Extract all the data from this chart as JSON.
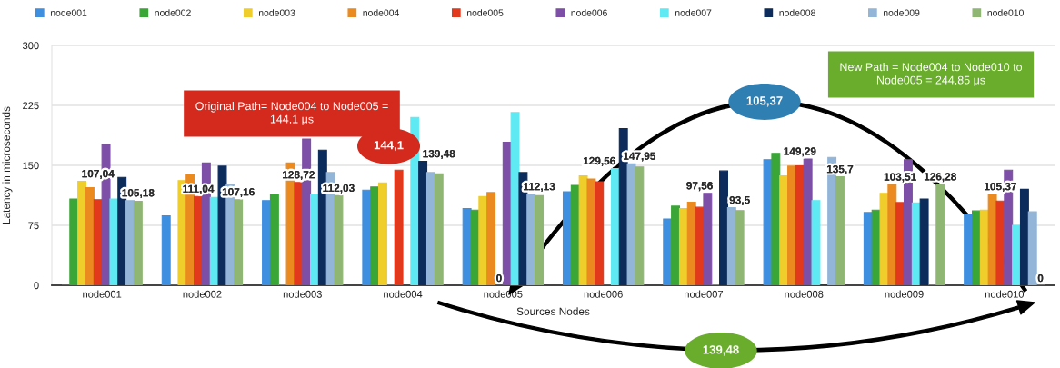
{
  "chart_data": {
    "type": "bar",
    "xlabel": "Sources Nodes",
    "ylabel": "Latency in microseconds",
    "categories": [
      "node001",
      "node002",
      "node003",
      "node004",
      "node005",
      "node006",
      "node007",
      "node008",
      "node009",
      "node010"
    ],
    "series": [
      {
        "name": "node001",
        "color": "#3f8fe0",
        "values": [
          0,
          87,
          106,
          119,
          96,
          117,
          83,
          157,
          91,
          88
        ]
      },
      {
        "name": "node002",
        "color": "#3aa637",
        "values": [
          108,
          0,
          114,
          123,
          94,
          125,
          99,
          165,
          94,
          93
        ]
      },
      {
        "name": "node003",
        "color": "#efcd2b",
        "values": [
          130,
          131,
          0,
          128,
          111,
          137,
          96,
          137,
          115,
          94
        ]
      },
      {
        "name": "node004",
        "color": "#ea8a1f",
        "values": [
          122,
          138,
          153,
          0,
          116,
          133,
          104,
          149,
          126,
          114
        ]
      },
      {
        "name": "node005",
        "color": "#e2381c",
        "values": [
          107.04,
          111.04,
          128.72,
          144.1,
          0,
          129.56,
          97.56,
          149.29,
          103.51,
          105.37
        ],
        "value_labels": [
          "107,04",
          "111,04",
          "128,72",
          null,
          "0",
          "129,56",
          "97,56",
          "149,29",
          "103,51",
          "105,37"
        ]
      },
      {
        "name": "node006",
        "color": "#7e4fa6",
        "values": [
          176,
          153,
          183,
          null,
          179,
          0,
          115,
          158,
          157,
          144
        ]
      },
      {
        "name": "node007",
        "color": "#5fe9f3",
        "values": [
          108,
          110,
          113,
          210,
          216,
          146,
          0,
          106,
          103,
          75
        ]
      },
      {
        "name": "node008",
        "color": "#0c2c5c",
        "values": [
          135,
          149,
          169,
          155,
          141,
          196,
          143,
          0,
          108,
          120
        ]
      },
      {
        "name": "node009",
        "color": "#93b5d8",
        "values": [
          106,
          126,
          141,
          141,
          114,
          152,
          97,
          160,
          0,
          92
        ]
      },
      {
        "name": "node010",
        "color": "#8fb673",
        "values": [
          105.18,
          107.16,
          112.03,
          139.48,
          112.13,
          147.95,
          93.5,
          135.7,
          126.28,
          0
        ],
        "value_labels": [
          "105,18",
          "107,16",
          "112,03",
          "139,48",
          "112,13",
          "147,95",
          "93,5",
          "135,7",
          "126,28",
          "0"
        ]
      }
    ],
    "ylim": [
      0,
      300
    ],
    "yticks": [
      0,
      75,
      150,
      225,
      300
    ],
    "grid": "y",
    "legend": "top",
    "annotations": [
      "Original Path= Node004 to Node005 =\n144,1 μs",
      "New Path = Node004 to Node010 to\nNode005 = 244,85 μs",
      {
        "text": "144,1",
        "x": "node004",
        "y": 144.1
      },
      "105,37",
      "139,48"
    ]
  }
}
